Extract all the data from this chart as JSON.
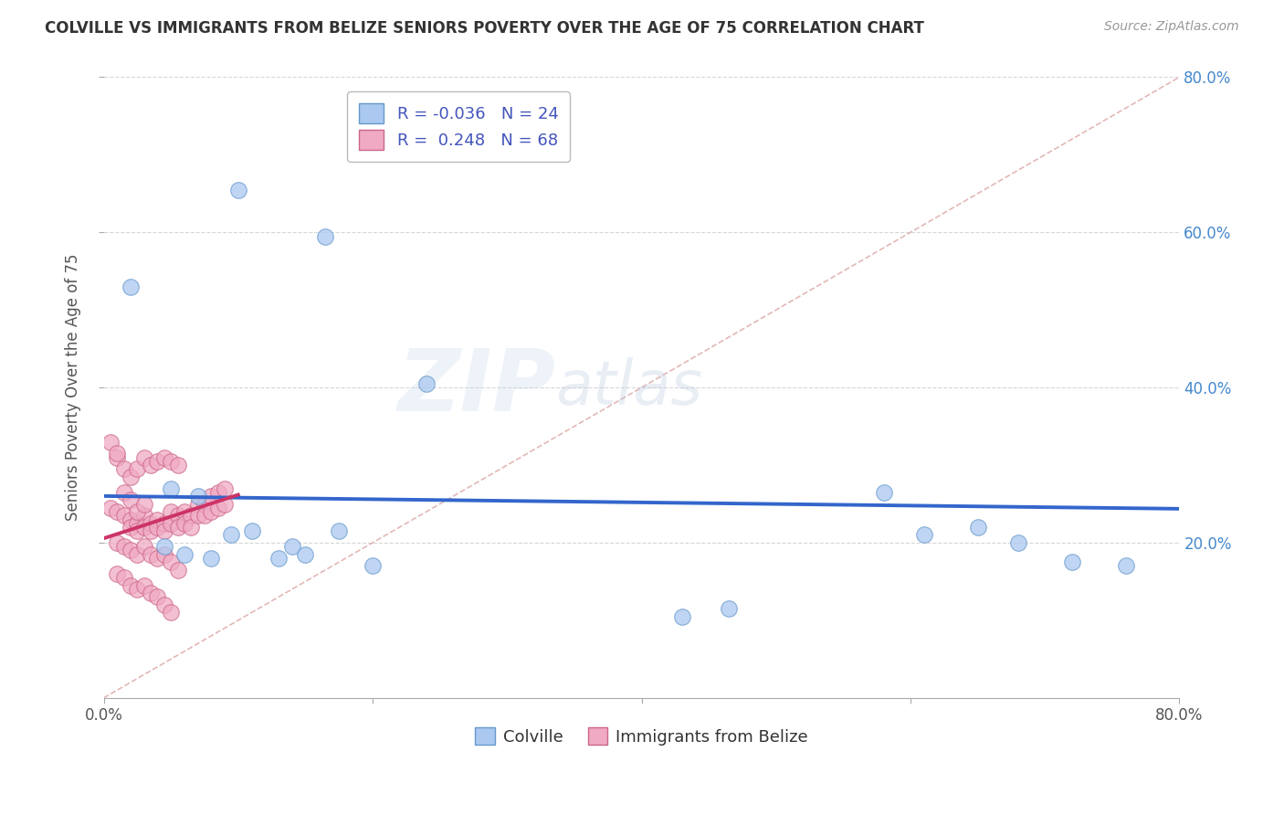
{
  "title": "COLVILLE VS IMMIGRANTS FROM BELIZE SENIORS POVERTY OVER THE AGE OF 75 CORRELATION CHART",
  "source": "Source: ZipAtlas.com",
  "ylabel": "Seniors Poverty Over the Age of 75",
  "xmin": 0.0,
  "xmax": 0.8,
  "ymin": 0.0,
  "ymax": 0.8,
  "xticks": [
    0.0,
    0.2,
    0.4,
    0.6,
    0.8
  ],
  "yticks": [
    0.2,
    0.4,
    0.6,
    0.8
  ],
  "legend_labels": [
    "Colville",
    "Immigrants from Belize"
  ],
  "colville_R": -0.036,
  "colville_N": 24,
  "belize_R": 0.248,
  "belize_N": 68,
  "colville_color": "#aac8f0",
  "belize_color": "#f0aac4",
  "colville_edge_color": "#6699cc",
  "belize_edge_color": "#cc6688",
  "colville_line_color": "#3366cc",
  "belize_line_color": "#cc3366",
  "diagonal_color": "#e0b0b0",
  "background_color": "#ffffff",
  "grid_color": "#cccccc",
  "watermark_zip": "ZIP",
  "watermark_atlas": "atlas",
  "colville_x": [
    0.02,
    0.1,
    0.165,
    0.24,
    0.05,
    0.07,
    0.095,
    0.11,
    0.14,
    0.175,
    0.43,
    0.465,
    0.58,
    0.61,
    0.65,
    0.68,
    0.72,
    0.76,
    0.045,
    0.06,
    0.08,
    0.13,
    0.15,
    0.2
  ],
  "colville_y": [
    0.53,
    0.655,
    0.595,
    0.405,
    0.27,
    0.26,
    0.21,
    0.215,
    0.195,
    0.215,
    0.105,
    0.115,
    0.265,
    0.21,
    0.22,
    0.2,
    0.175,
    0.17,
    0.195,
    0.185,
    0.18,
    0.18,
    0.185,
    0.17
  ],
  "belize_x": [
    0.005,
    0.01,
    0.015,
    0.02,
    0.02,
    0.025,
    0.025,
    0.03,
    0.03,
    0.035,
    0.035,
    0.04,
    0.04,
    0.045,
    0.045,
    0.05,
    0.05,
    0.055,
    0.055,
    0.06,
    0.06,
    0.065,
    0.065,
    0.07,
    0.07,
    0.075,
    0.075,
    0.08,
    0.08,
    0.085,
    0.085,
    0.09,
    0.09,
    0.01,
    0.015,
    0.02,
    0.025,
    0.03,
    0.035,
    0.04,
    0.045,
    0.05,
    0.055,
    0.01,
    0.015,
    0.02,
    0.025,
    0.03,
    0.035,
    0.04,
    0.045,
    0.05,
    0.055,
    0.01,
    0.015,
    0.02,
    0.025,
    0.03,
    0.035,
    0.04,
    0.045,
    0.05,
    0.005,
    0.01,
    0.015,
    0.02,
    0.025,
    0.03
  ],
  "belize_y": [
    0.245,
    0.24,
    0.235,
    0.23,
    0.22,
    0.225,
    0.215,
    0.235,
    0.22,
    0.225,
    0.215,
    0.23,
    0.22,
    0.225,
    0.215,
    0.24,
    0.225,
    0.235,
    0.22,
    0.24,
    0.225,
    0.235,
    0.22,
    0.25,
    0.235,
    0.25,
    0.235,
    0.26,
    0.24,
    0.265,
    0.245,
    0.27,
    0.25,
    0.31,
    0.295,
    0.285,
    0.295,
    0.31,
    0.3,
    0.305,
    0.31,
    0.305,
    0.3,
    0.2,
    0.195,
    0.19,
    0.185,
    0.195,
    0.185,
    0.18,
    0.185,
    0.175,
    0.165,
    0.16,
    0.155,
    0.145,
    0.14,
    0.145,
    0.135,
    0.13,
    0.12,
    0.11,
    0.33,
    0.315,
    0.265,
    0.255,
    0.24,
    0.25
  ]
}
